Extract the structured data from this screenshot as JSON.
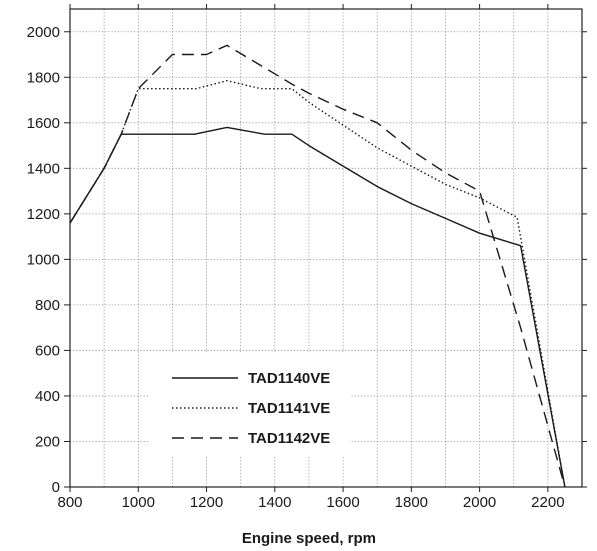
{
  "chart_data": {
    "type": "line",
    "title": "",
    "xlabel": "Engine speed, rpm",
    "ylabel": "",
    "xlim": [
      800,
      2300
    ],
    "ylim": [
      0,
      2100
    ],
    "xticks": [
      800,
      1000,
      1200,
      1400,
      1600,
      1800,
      2000,
      2200
    ],
    "yticks": [
      0,
      200,
      400,
      600,
      800,
      1000,
      1200,
      1400,
      1600,
      1800,
      2000
    ],
    "grid": true,
    "legend_position": "lower-left",
    "series": [
      {
        "name": "TAD1140VE",
        "style": "solid",
        "color": "#1a1a1a",
        "x": [
          800,
          900,
          950,
          1000,
          1100,
          1165,
          1260,
          1370,
          1450,
          1500,
          1600,
          1700,
          1800,
          1900,
          2000,
          2120,
          2250
        ],
        "y": [
          1160,
          1400,
          1550,
          1550,
          1550,
          1550,
          1580,
          1550,
          1550,
          1500,
          1410,
          1320,
          1245,
          1180,
          1115,
          1060,
          0
        ]
      },
      {
        "name": "TAD1141VE",
        "style": "dotted",
        "color": "#1a1a1a",
        "x": [
          800,
          900,
          950,
          1000,
          1100,
          1170,
          1260,
          1360,
          1450,
          1500,
          1600,
          1700,
          1800,
          1900,
          2000,
          2110,
          2250
        ],
        "y": [
          1160,
          1400,
          1550,
          1750,
          1750,
          1750,
          1785,
          1750,
          1750,
          1690,
          1590,
          1490,
          1410,
          1330,
          1270,
          1185,
          0
        ]
      },
      {
        "name": "TAD1142VE",
        "style": "dashed",
        "color": "#1a1a1a",
        "x": [
          800,
          900,
          950,
          1000,
          1100,
          1200,
          1260,
          1350,
          1450,
          1500,
          1600,
          1700,
          1800,
          1900,
          2000,
          2120,
          2250
        ],
        "y": [
          1160,
          1400,
          1550,
          1750,
          1900,
          1900,
          1940,
          1860,
          1770,
          1730,
          1660,
          1600,
          1480,
          1380,
          1300,
          700,
          0
        ]
      }
    ]
  }
}
